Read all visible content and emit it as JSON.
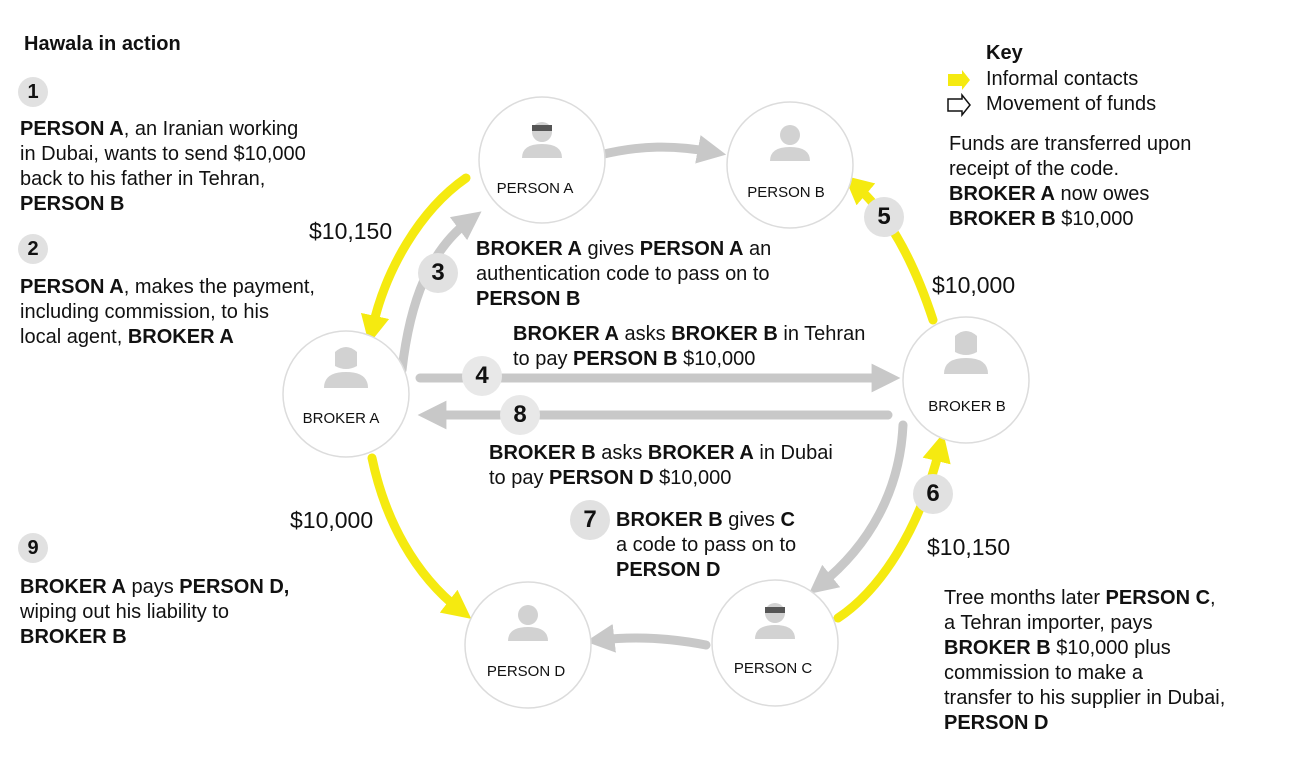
{
  "title": "Hawala in action",
  "colors": {
    "informal": "#f5ea10",
    "funds": "#c8c8c8",
    "node_border": "#dcdcdc",
    "icon": "#d2d2d2"
  },
  "key": {
    "title": "Key",
    "items": [
      {
        "label": "Informal contacts",
        "icon": "yellow-arrow"
      },
      {
        "label": "Movement of funds",
        "icon": "outline-arrow"
      }
    ]
  },
  "nodes": {
    "person_a": "PERSON A",
    "person_b": "PERSON B",
    "broker_a": "BROKER A",
    "broker_b": "BROKER B",
    "person_c": "PERSON C",
    "person_d": "PERSON D"
  },
  "amounts": {
    "a_to_broker": "$10,150",
    "broker_b_to_person_b": "$10,000",
    "broker_a_to_person_d": "$10,000",
    "person_c_to_broker_b": "$10,150"
  },
  "steps": [
    {
      "n": "1",
      "parts": [
        {
          "t": "PERSON A",
          "b": true
        },
        {
          "t": ", an Iranian working\nin Dubai, wants to send $10,000\nback to his father in Tehran,\n",
          "b": false
        },
        {
          "t": "PERSON B",
          "b": true
        }
      ]
    },
    {
      "n": "2",
      "parts": [
        {
          "t": "PERSON A",
          "b": true
        },
        {
          "t": ", makes the payment,\nincluding commission, to his\nlocal agent, ",
          "b": false
        },
        {
          "t": "BROKER A",
          "b": true
        }
      ]
    },
    {
      "n": "3",
      "parts": [
        {
          "t": "BROKER A",
          "b": true
        },
        {
          "t": " gives ",
          "b": false
        },
        {
          "t": "PERSON A",
          "b": true
        },
        {
          "t": " an\nauthentication code to pass on to\n",
          "b": false
        },
        {
          "t": "PERSON B",
          "b": true
        }
      ]
    },
    {
      "n": "4",
      "parts": [
        {
          "t": "BROKER A",
          "b": true
        },
        {
          "t": " asks ",
          "b": false
        },
        {
          "t": "BROKER B",
          "b": true
        },
        {
          "t": " in Tehran\nto pay ",
          "b": false
        },
        {
          "t": "PERSON B",
          "b": true
        },
        {
          "t": " $10,000",
          "b": false
        }
      ]
    },
    {
      "n": "5",
      "parts": [
        {
          "t": "Funds are transferred upon\nreceipt of the code.\n",
          "b": false
        },
        {
          "t": "BROKER A",
          "b": true
        },
        {
          "t": " now owes\n",
          "b": false
        },
        {
          "t": "BROKER B",
          "b": true
        },
        {
          "t": " $10,000",
          "b": false
        }
      ]
    },
    {
      "n": "6",
      "parts": [
        {
          "t": "Tree months later ",
          "b": false
        },
        {
          "t": "PERSON C",
          "b": true
        },
        {
          "t": ",\na Tehran importer, pays\n",
          "b": false
        },
        {
          "t": "BROKER B",
          "b": true
        },
        {
          "t": " $10,000 plus\ncommission to make a\ntransfer to his supplier in Dubai,\n",
          "b": false
        },
        {
          "t": "PERSON D",
          "b": true
        }
      ]
    },
    {
      "n": "7",
      "parts": [
        {
          "t": "BROKER B",
          "b": true
        },
        {
          "t": " gives ",
          "b": false
        },
        {
          "t": "C",
          "b": true
        },
        {
          "t": "\na code to pass on to\n",
          "b": false
        },
        {
          "t": "PERSON D",
          "b": true
        }
      ]
    },
    {
      "n": "8",
      "parts": [
        {
          "t": "BROKER B",
          "b": true
        },
        {
          "t": " asks ",
          "b": false
        },
        {
          "t": "BROKER A",
          "b": true
        },
        {
          "t": " in Dubai\nto pay ",
          "b": false
        },
        {
          "t": "PERSON D",
          "b": true
        },
        {
          "t": " $10,000",
          "b": false
        }
      ]
    },
    {
      "n": "9",
      "parts": [
        {
          "t": "BROKER A",
          "b": true
        },
        {
          "t": " pays ",
          "b": false
        },
        {
          "t": "PERSON D,",
          "b": true
        },
        {
          "t": "\nwiping out his liability to\n",
          "b": false
        },
        {
          "t": "BROKER B",
          "b": true
        }
      ]
    }
  ]
}
